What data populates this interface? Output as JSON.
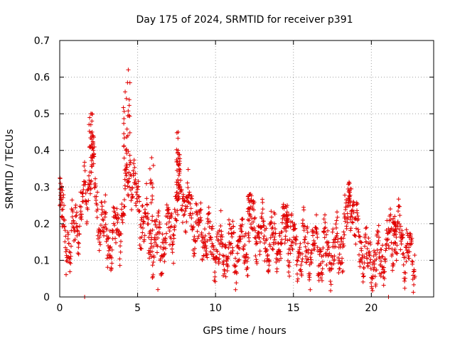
{
  "chart_data": {
    "type": "scatter",
    "title": "Day 175 of 2024, SRMTID for receiver p391",
    "xlabel": "GPS time / hours",
    "ylabel": "SRMTID / TECUs",
    "xlim": [
      0,
      24
    ],
    "ylim": [
      0,
      0.7
    ],
    "xticks": [
      0,
      5,
      10,
      15,
      20
    ],
    "xtick_labels": [
      "0",
      "5",
      "10",
      "15",
      "20"
    ],
    "yticks": [
      0,
      0.1,
      0.2,
      0.3,
      0.4,
      0.5,
      0.6,
      0.7
    ],
    "ytick_labels": [
      "0",
      "0.1",
      "0.2",
      "0.3",
      "0.4",
      "0.5",
      "0.6",
      "0.7"
    ],
    "grid": true,
    "marker": "plus",
    "color": "#e00000",
    "trend_knots": {
      "x": [
        0,
        0.3,
        0.7,
        1.0,
        1.5,
        1.8,
        2.0,
        2.2,
        2.5,
        3.0,
        3.5,
        4.0,
        4.3,
        4.5,
        4.8,
        5.0,
        5.5,
        6.0,
        6.5,
        7.0,
        7.5,
        7.8,
        8.2,
        9.0,
        10.0,
        11.0,
        12.0,
        12.3,
        13.0,
        14.0,
        14.5,
        15.0,
        16.0,
        17.0,
        18.0,
        18.5,
        18.7,
        19.0,
        19.5,
        20.0,
        20.5,
        21.0,
        21.5,
        22.0,
        22.5,
        22.8
      ],
      "y": [
        0.25,
        0.17,
        0.14,
        0.2,
        0.24,
        0.3,
        0.35,
        0.3,
        0.22,
        0.16,
        0.16,
        0.22,
        0.3,
        0.36,
        0.3,
        0.24,
        0.2,
        0.14,
        0.15,
        0.18,
        0.22,
        0.3,
        0.24,
        0.18,
        0.13,
        0.13,
        0.15,
        0.2,
        0.16,
        0.14,
        0.19,
        0.14,
        0.13,
        0.12,
        0.14,
        0.22,
        0.28,
        0.18,
        0.12,
        0.09,
        0.1,
        0.13,
        0.17,
        0.15,
        0.12,
        0.09
      ]
    },
    "peaks": [
      {
        "x": 4.4,
        "y": 0.62
      },
      {
        "x": 4.2,
        "y": 0.56
      },
      {
        "x": 2.0,
        "y": 0.5
      },
      {
        "x": 7.6,
        "y": 0.45
      },
      {
        "x": 2.1,
        "y": 0.44
      },
      {
        "x": 7.6,
        "y": 0.4
      },
      {
        "x": 5.9,
        "y": 0.38
      },
      {
        "x": 0.05,
        "y": 0.31
      },
      {
        "x": 18.6,
        "y": 0.31
      },
      {
        "x": 12.2,
        "y": 0.28
      },
      {
        "x": 14.6,
        "y": 0.25
      },
      {
        "x": 21.5,
        "y": 0.22
      },
      {
        "x": 6.3,
        "y": 0.02
      },
      {
        "x": 1.6,
        "y": 0.0
      },
      {
        "x": 21.1,
        "y": 0.0
      }
    ],
    "point_count": 1500
  }
}
